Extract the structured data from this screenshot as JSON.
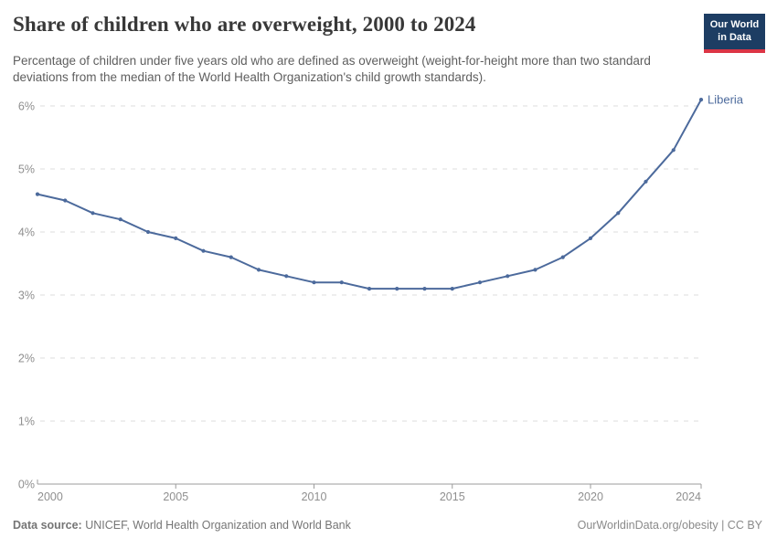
{
  "header": {
    "title": "Share of children who are overweight, 2000 to 2024",
    "subtitle": "Percentage of children under five years old who are defined as overweight (weight-for-height more than two standard deviations from the median of the World Health Organization's child growth standards).",
    "logo": {
      "line1": "Our World",
      "line2": "in Data"
    }
  },
  "chart_data": {
    "type": "line",
    "title": "Share of children who are overweight, 2000 to 2024",
    "x": [
      2000,
      2001,
      2002,
      2003,
      2004,
      2005,
      2006,
      2007,
      2008,
      2009,
      2010,
      2011,
      2012,
      2013,
      2014,
      2015,
      2016,
      2017,
      2018,
      2019,
      2020,
      2021,
      2022,
      2023,
      2024
    ],
    "series": [
      {
        "name": "Liberia",
        "color": "#4C6A9C",
        "values": [
          4.6,
          4.5,
          4.3,
          4.2,
          4.0,
          3.9,
          3.7,
          3.6,
          3.4,
          3.3,
          3.2,
          3.2,
          3.1,
          3.1,
          3.1,
          3.1,
          3.2,
          3.3,
          3.4,
          3.6,
          3.9,
          4.3,
          4.8,
          5.3,
          6.1
        ]
      }
    ],
    "unit": "%",
    "xlabel": "",
    "ylabel": "",
    "ylim": [
      0,
      6
    ],
    "y_ticks": [
      0,
      1,
      2,
      3,
      4,
      5,
      6
    ],
    "x_ticks": [
      2000,
      2005,
      2010,
      2015,
      2020,
      2024
    ],
    "grid": "horizontal-dashed",
    "legend_position": "end-of-line-label"
  },
  "colors": {
    "line": "#4C6A9C",
    "gridline": "#dcdcdc",
    "axis_line": "#9b9b9b",
    "tick_label": "#8f8f8f",
    "logo_bg": "#1d3d63",
    "logo_stripe": "#dc3545"
  },
  "footer": {
    "source_label": "Data source:",
    "source_text": " UNICEF, World Health Organization and World Bank",
    "right_text": "OurWorldinData.org/obesity | CC BY"
  }
}
